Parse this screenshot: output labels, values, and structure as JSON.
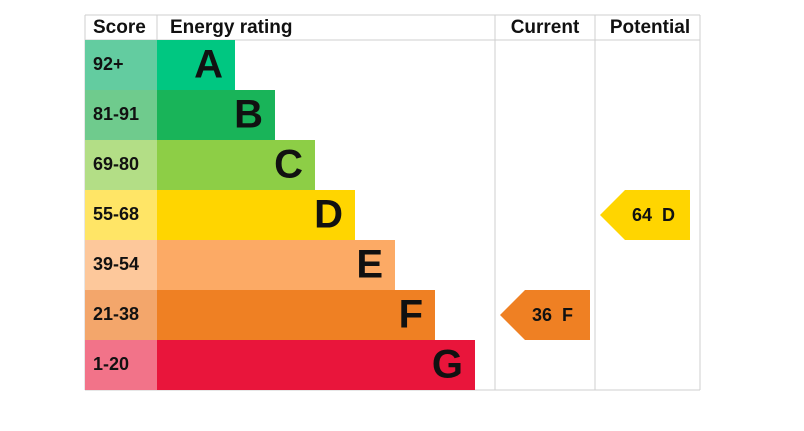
{
  "headers": {
    "score": "Score",
    "rating": "Energy rating",
    "current": "Current",
    "potential": "Potential"
  },
  "rows": [
    {
      "score": "92+",
      "rating": "A",
      "color": "#00c781",
      "score_color": "#63cca0"
    },
    {
      "score": "81-91",
      "rating": "B",
      "color": "#19b459",
      "score_color": "#6fcb8d"
    },
    {
      "score": "69-80",
      "rating": "C",
      "color": "#8dce46",
      "score_color": "#b3de86"
    },
    {
      "score": "55-68",
      "rating": "D",
      "color": "#ffd500",
      "score_color": "#ffe566"
    },
    {
      "score": "39-54",
      "rating": "E",
      "color": "#fcaa65",
      "score_color": "#fdc89b"
    },
    {
      "score": "21-38",
      "rating": "F",
      "color": "#ef8023",
      "score_color": "#f3a66b"
    },
    {
      "score": "1-20",
      "rating": "G",
      "color": "#e9153b",
      "score_color": "#f27389"
    }
  ],
  "current": {
    "value": 36,
    "rating": "F"
  },
  "potential": {
    "value": 64,
    "rating": "D"
  }
}
